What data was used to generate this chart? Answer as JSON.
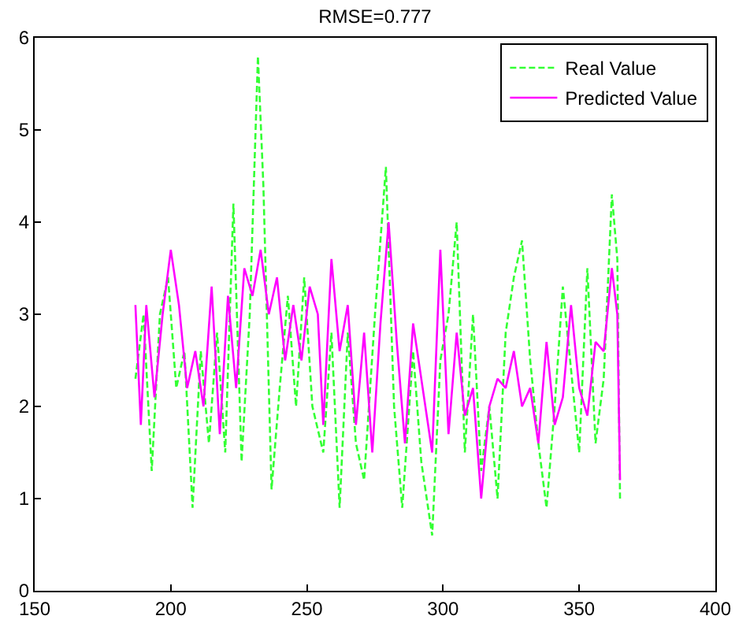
{
  "chart_data": {
    "type": "line",
    "title": "RMSE=0.777",
    "xlim": [
      150,
      400
    ],
    "xticks": [
      150,
      200,
      250,
      300,
      350,
      400
    ],
    "ylim": [
      0,
      6
    ],
    "yticks": [
      0,
      1,
      2,
      3,
      4,
      5,
      6
    ],
    "legend": "top right",
    "series": [
      {
        "name": "Real Value",
        "color": "#33ff33",
        "line_style": "dashed",
        "x": [
          187,
          190,
          193,
          196,
          199,
          202,
          205,
          208,
          211,
          214,
          217,
          220,
          223,
          226,
          229,
          232,
          234,
          237,
          240,
          243,
          246,
          249,
          252,
          256,
          259,
          262,
          265,
          268,
          271,
          275,
          279,
          282,
          285,
          289,
          292,
          296,
          299,
          302,
          305,
          308,
          311,
          314,
          317,
          320,
          323,
          326,
          329,
          332,
          335,
          338,
          341,
          344,
          347,
          350,
          353,
          356,
          359,
          362,
          364,
          365
        ],
        "values": [
          2.3,
          3.0,
          1.3,
          3.0,
          3.4,
          2.2,
          2.6,
          0.9,
          2.6,
          1.6,
          2.8,
          1.5,
          4.2,
          1.4,
          3.0,
          5.8,
          4.4,
          1.1,
          2.2,
          3.2,
          2.0,
          3.4,
          2.0,
          1.5,
          2.8,
          0.9,
          2.8,
          1.6,
          1.2,
          3.0,
          4.6,
          2.0,
          0.9,
          2.6,
          1.4,
          0.6,
          2.5,
          3.0,
          4.0,
          1.5,
          3.0,
          1.3,
          2.0,
          1.0,
          2.8,
          3.4,
          3.8,
          2.5,
          1.6,
          0.9,
          2.0,
          3.3,
          2.4,
          1.5,
          3.5,
          1.6,
          2.3,
          4.3,
          3.6,
          1.0
        ]
      },
      {
        "name": "Predicted Value",
        "color": "#ff00ff",
        "line_style": "solid",
        "x": [
          187,
          189,
          191,
          194,
          197,
          200,
          203,
          206,
          209,
          212,
          215,
          218,
          221,
          224,
          227,
          230,
          233,
          236,
          239,
          242,
          245,
          248,
          251,
          254,
          256,
          259,
          262,
          265,
          268,
          271,
          274,
          277,
          280,
          283,
          286,
          289,
          292,
          296,
          299,
          302,
          305,
          308,
          311,
          314,
          317,
          320,
          323,
          326,
          329,
          332,
          335,
          338,
          341,
          344,
          347,
          350,
          353,
          356,
          359,
          362,
          364,
          365
        ],
        "values": [
          3.1,
          1.8,
          3.1,
          2.1,
          3.0,
          3.7,
          3.1,
          2.2,
          2.6,
          2.0,
          3.3,
          1.7,
          3.2,
          2.2,
          3.5,
          3.2,
          3.7,
          3.0,
          3.4,
          2.5,
          3.1,
          2.5,
          3.3,
          3.0,
          1.8,
          3.6,
          2.6,
          3.1,
          1.8,
          2.8,
          1.5,
          2.9,
          4.0,
          2.7,
          1.6,
          2.9,
          2.3,
          1.5,
          3.7,
          1.7,
          2.8,
          1.9,
          2.2,
          1.0,
          2.0,
          2.3,
          2.2,
          2.6,
          2.0,
          2.2,
          1.6,
          2.7,
          1.8,
          2.1,
          3.1,
          2.2,
          1.9,
          2.7,
          2.6,
          3.5,
          3.0,
          1.2
        ]
      }
    ]
  }
}
